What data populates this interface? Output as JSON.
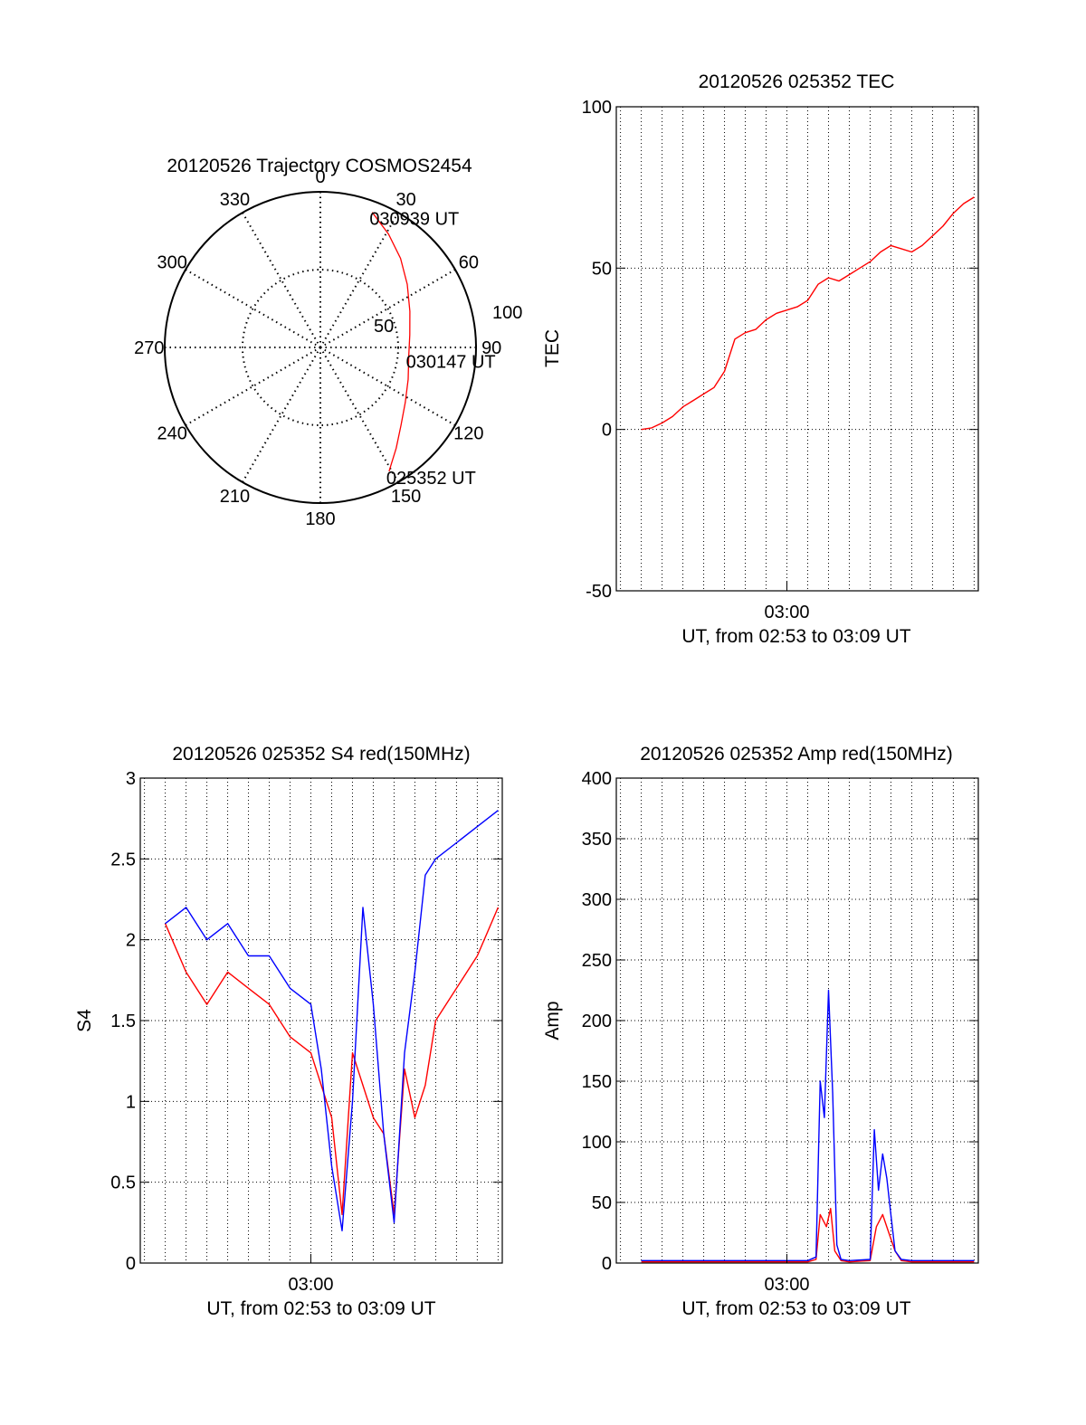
{
  "colors": {
    "red": "#ff0000",
    "blue": "#0000ff",
    "axis": "#000000",
    "grid": "#000000",
    "background": "#ffffff"
  },
  "chart_data": [
    {
      "id": "trajectory",
      "type": "polar",
      "title": "20120526 Trajectory COSMOS2454",
      "angle_ticks": [
        "0",
        "30",
        "60",
        "90",
        "120",
        "150",
        "180",
        "210",
        "240",
        "270",
        "300",
        "330"
      ],
      "angle_tick_values": [
        0,
        30,
        60,
        90,
        120,
        150,
        180,
        210,
        240,
        270,
        300,
        330
      ],
      "radial_ticks": [
        "50",
        "100"
      ],
      "radial_tick_values": [
        50,
        100
      ],
      "radial_range": [
        0,
        100
      ],
      "grid": true,
      "series": [
        {
          "color": "#ff0000",
          "points": [
            {
              "az": 151,
              "r": 91
            },
            {
              "az": 143,
              "r": 81
            },
            {
              "az": 134,
              "r": 72
            },
            {
              "az": 123,
              "r": 65
            },
            {
              "az": 110,
              "r": 60
            },
            {
              "az": 95,
              "r": 57
            },
            {
              "az": 82,
              "r": 58
            },
            {
              "az": 68,
              "r": 62
            },
            {
              "az": 54,
              "r": 69
            },
            {
              "az": 42,
              "r": 77
            },
            {
              "az": 31,
              "r": 85
            },
            {
              "az": 21,
              "r": 93
            }
          ]
        }
      ],
      "annotations": [
        {
          "text": "025352 UT",
          "az": 151,
          "r": 91
        },
        {
          "text": "030147 UT",
          "az": 95,
          "r": 57
        },
        {
          "text": "030939 UT",
          "az": 21,
          "r": 93
        }
      ]
    },
    {
      "id": "tec",
      "type": "line",
      "title": "20120526 025352 TEC",
      "ylabel": "TEC",
      "xlabel": "UT, from 02:53 to 03:09 UT",
      "x_ticks": [
        "03:00"
      ],
      "x_tick_values": [
        7.0
      ],
      "x_range": [
        -1.2,
        16.2
      ],
      "ylim": [
        -50,
        100
      ],
      "y_ticks": [
        "-50",
        "0",
        "50",
        "100"
      ],
      "y_tick_values": [
        -50,
        0,
        50,
        100
      ],
      "grid": true,
      "series": [
        {
          "color": "#ff0000",
          "x": [
            0,
            0.5,
            1,
            1.5,
            2,
            2.5,
            3,
            3.5,
            4,
            4.5,
            5,
            5.5,
            6,
            6.5,
            7,
            7.5,
            8,
            8.5,
            9,
            9.5,
            10,
            10.5,
            11,
            11.5,
            12,
            12.5,
            13,
            13.5,
            14,
            14.5,
            15,
            15.5,
            16
          ],
          "y": [
            0,
            0.5,
            2,
            4,
            7,
            9,
            11,
            13,
            18,
            28,
            30,
            31,
            34,
            36,
            37,
            38,
            40,
            45,
            47,
            46,
            48,
            50,
            52,
            55,
            57,
            56,
            55,
            57,
            60,
            63,
            67,
            70,
            72
          ]
        }
      ]
    },
    {
      "id": "s4",
      "type": "line",
      "title": "20120526 025352 S4 red(150MHz)",
      "ylabel": "S4",
      "xlabel": "UT, from 02:53 to 03:09 UT",
      "x_ticks": [
        "03:00"
      ],
      "x_tick_values": [
        7.0
      ],
      "x_range": [
        -1.2,
        16.2
      ],
      "ylim": [
        0,
        3
      ],
      "y_ticks": [
        "0",
        "0.5",
        "1",
        "1.5",
        "2",
        "2.5",
        "3"
      ],
      "y_tick_values": [
        0,
        0.5,
        1,
        1.5,
        2,
        2.5,
        3
      ],
      "grid": true,
      "series": [
        {
          "color": "#ff0000",
          "x": [
            0,
            1,
            2,
            3,
            4,
            5,
            6,
            7,
            7.5,
            8,
            8.5,
            9,
            9.5,
            10,
            10.5,
            11,
            11.5,
            12,
            12.5,
            13,
            14,
            15,
            16
          ],
          "y": [
            2.1,
            1.8,
            1.6,
            1.8,
            1.7,
            1.6,
            1.4,
            1.3,
            1.1,
            0.9,
            0.3,
            1.3,
            1.1,
            0.9,
            0.8,
            0.3,
            1.2,
            0.9,
            1.1,
            1.5,
            1.7,
            1.9,
            2.2
          ]
        },
        {
          "color": "#0000ff",
          "x": [
            0,
            1,
            2,
            3,
            4,
            5,
            6,
            7,
            7.5,
            8,
            8.5,
            9,
            9.5,
            10,
            10.5,
            11,
            11.5,
            12,
            12.5,
            13,
            14,
            15,
            16
          ],
          "y": [
            2.1,
            2.2,
            2.0,
            2.1,
            1.9,
            1.9,
            1.7,
            1.6,
            1.2,
            0.6,
            0.2,
            1.0,
            2.2,
            1.6,
            0.8,
            0.25,
            1.3,
            1.8,
            2.4,
            2.5,
            2.6,
            2.7,
            2.8
          ]
        }
      ]
    },
    {
      "id": "amp",
      "type": "line",
      "title": "20120526 025352 Amp red(150MHz)",
      "ylabel": "Amp",
      "xlabel": "UT, from 02:53 to 03:09 UT",
      "x_ticks": [
        "03:00"
      ],
      "x_tick_values": [
        7.0
      ],
      "x_range": [
        -1.2,
        16.2
      ],
      "ylim": [
        0,
        400
      ],
      "y_ticks": [
        "0",
        "50",
        "100",
        "150",
        "200",
        "250",
        "300",
        "350",
        "400"
      ],
      "y_tick_values": [
        0,
        50,
        100,
        150,
        200,
        250,
        300,
        350,
        400
      ],
      "grid": true,
      "series": [
        {
          "color": "#ff0000",
          "x": [
            0,
            2,
            4,
            6,
            7,
            8,
            8.4,
            8.6,
            8.9,
            9.1,
            9.3,
            9.6,
            10,
            11,
            11.3,
            11.6,
            11.9,
            12.2,
            12.5,
            13,
            14,
            15,
            16
          ],
          "y": [
            1,
            1,
            1,
            1,
            1,
            1,
            3,
            40,
            30,
            45,
            10,
            2,
            1,
            2,
            30,
            40,
            25,
            10,
            2,
            1,
            1,
            1,
            1
          ]
        },
        {
          "color": "#0000ff",
          "x": [
            0,
            2,
            4,
            6,
            7,
            8,
            8.4,
            8.6,
            8.8,
            9.0,
            9.2,
            9.4,
            9.6,
            10,
            11,
            11.2,
            11.4,
            11.6,
            11.8,
            12.0,
            12.2,
            12.5,
            13,
            14,
            15,
            16
          ],
          "y": [
            2,
            2,
            2,
            2,
            2,
            2,
            5,
            150,
            120,
            225,
            140,
            15,
            3,
            2,
            3,
            110,
            60,
            90,
            70,
            40,
            10,
            3,
            2,
            2,
            2,
            2
          ]
        }
      ]
    }
  ]
}
